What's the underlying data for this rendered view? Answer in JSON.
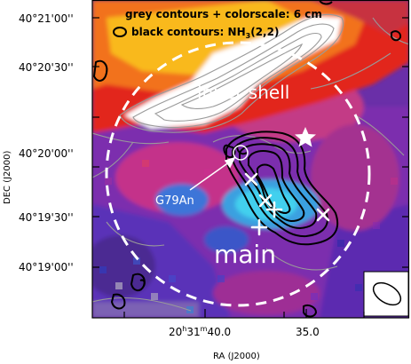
{
  "legend": {
    "line1": "grey contours + colorscale: 6 cm",
    "line2_prefix": "black contours: NH",
    "line2_sub": "3",
    "line2_suffix": "(2,2)"
  },
  "axes": {
    "xlabel": "RA (J2000)",
    "ylabel": "DEC (J2000)",
    "x_ticks": [
      {
        "h": "20",
        "hs": "h",
        "m": "31",
        "ms": "m",
        "s": "40.0"
      },
      {
        "h": "",
        "hs": "",
        "m": "",
        "ms": "",
        "s": "35.0"
      }
    ],
    "y_ticks": [
      "40°21'00''",
      "40°20'30''",
      "40°20'00''",
      "40°19'30''",
      "40°19'00''"
    ]
  },
  "annotations": {
    "inner_shell": "inner shell",
    "main": "main",
    "source": "G79An"
  },
  "colors": {
    "frame": "#000000",
    "circle": "#ffffff",
    "grey_contour": "#9a9a9a",
    "black_contour": "#000000"
  }
}
